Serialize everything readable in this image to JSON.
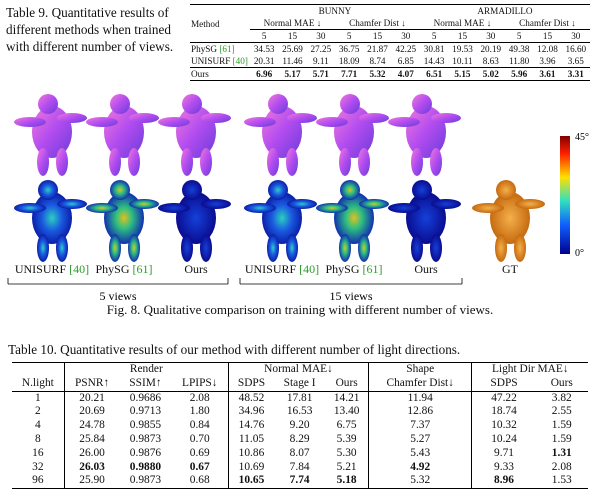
{
  "table9": {
    "caption": "Table 9. Quantitative results of different methods when trained with different number of views.",
    "method_header": "Method",
    "groups": [
      {
        "name": "BUNNY",
        "metrics": [
          "Normal MAE ↓",
          "Chamfer Dist ↓"
        ]
      },
      {
        "name": "ARMADILLO",
        "metrics": [
          "Normal MAE ↓",
          "Chamfer Dist ↓"
        ]
      }
    ],
    "views": [
      "5",
      "15",
      "30"
    ],
    "rows": [
      {
        "method": "PhySG",
        "ref": "[61]",
        "values": [
          "34.53",
          "25.69",
          "27.25",
          "36.75",
          "21.87",
          "42.25",
          "30.81",
          "19.53",
          "20.19",
          "49.38",
          "12.08",
          "16.60"
        ],
        "bold": false
      },
      {
        "method": "UNISURF",
        "ref": "[40]",
        "values": [
          "20.31",
          "11.46",
          "9.11",
          "18.09",
          "8.74",
          "6.85",
          "14.43",
          "10.11",
          "8.63",
          "11.80",
          "3.96",
          "3.65"
        ],
        "bold": false
      },
      {
        "method": "Ours",
        "values": [
          "6.96",
          "5.17",
          "5.71",
          "7.71",
          "5.32",
          "4.07",
          "6.51",
          "5.15",
          "5.02",
          "5.96",
          "3.61",
          "3.31"
        ],
        "bold": true
      }
    ]
  },
  "figure8": {
    "colorbar": {
      "max": "45°",
      "min": "0°"
    },
    "labels": [
      {
        "method": "UNISURF",
        "ref": "[40]"
      },
      {
        "method": "PhySG",
        "ref": "[61]"
      },
      {
        "method": "Ours"
      },
      {
        "method": "UNISURF",
        "ref": "[40]"
      },
      {
        "method": "PhySG",
        "ref": "[61]"
      },
      {
        "method": "Ours"
      },
      {
        "method": "GT"
      }
    ],
    "groups": [
      "5 views",
      "15 views"
    ],
    "caption": "Fig. 8. Qualitative comparison on training with different number of views."
  },
  "table10": {
    "caption": "Table 10. Quantitative results of our method with different number of light directions.",
    "group_header": [
      {
        "text": "Render",
        "span": 3
      },
      {
        "text": "Normal MAE↓",
        "span": 3
      },
      {
        "text": "Shape",
        "span": 1
      },
      {
        "text": "Light Dir MAE↓",
        "span": 2
      }
    ],
    "header": [
      "N.light",
      "PSNR↑",
      "SSIM↑",
      "LPIPS↓",
      "SDPS",
      "Stage I",
      "Ours",
      "Chamfer Dist↓",
      "SDPS",
      "Ours"
    ],
    "rows": [
      {
        "cells": [
          "1",
          "20.21",
          "0.9686",
          "2.08",
          "48.52",
          "17.81",
          "14.21",
          "11.94",
          "47.22",
          "3.82"
        ],
        "bold": []
      },
      {
        "cells": [
          "2",
          "20.69",
          "0.9713",
          "1.80",
          "34.96",
          "16.53",
          "13.40",
          "12.86",
          "18.74",
          "2.55"
        ],
        "bold": []
      },
      {
        "cells": [
          "4",
          "24.78",
          "0.9855",
          "0.84",
          "14.76",
          "9.20",
          "6.75",
          "7.37",
          "10.32",
          "1.59"
        ],
        "bold": []
      },
      {
        "cells": [
          "8",
          "25.84",
          "0.9873",
          "0.70",
          "11.05",
          "8.29",
          "5.39",
          "5.27",
          "10.24",
          "1.59"
        ],
        "bold": []
      },
      {
        "cells": [
          "16",
          "26.00",
          "0.9876",
          "0.69",
          "10.86",
          "8.07",
          "5.30",
          "5.43",
          "9.71",
          "1.31"
        ],
        "bold": [
          9
        ]
      },
      {
        "cells": [
          "32",
          "26.03",
          "0.9880",
          "0.67",
          "10.69",
          "7.84",
          "5.21",
          "4.92",
          "9.33",
          "2.08"
        ],
        "bold": [
          1,
          2,
          3,
          7
        ]
      },
      {
        "cells": [
          "96",
          "25.90",
          "0.9873",
          "0.68",
          "10.65",
          "7.74",
          "5.18",
          "5.32",
          "8.96",
          "1.53"
        ],
        "bold": [
          4,
          5,
          6,
          8
        ]
      }
    ]
  }
}
